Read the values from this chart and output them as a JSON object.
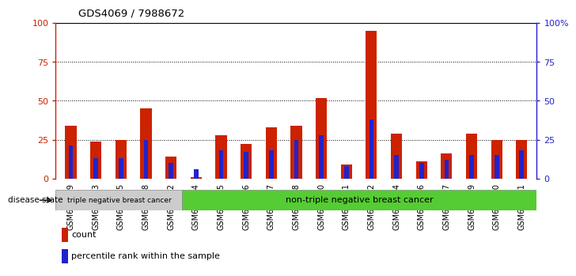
{
  "title": "GDS4069 / 7988672",
  "samples": [
    "GSM678369",
    "GSM678373",
    "GSM678375",
    "GSM678378",
    "GSM678382",
    "GSM678364",
    "GSM678365",
    "GSM678366",
    "GSM678367",
    "GSM678368",
    "GSM678370",
    "GSM678371",
    "GSM678372",
    "GSM678374",
    "GSM678376",
    "GSM678377",
    "GSM678379",
    "GSM678380",
    "GSM678381"
  ],
  "red_values": [
    34,
    24,
    25,
    45,
    14,
    1,
    28,
    22,
    33,
    34,
    52,
    9,
    95,
    29,
    11,
    16,
    29,
    25,
    25
  ],
  "blue_values": [
    21,
    13,
    13,
    25,
    10,
    6,
    18,
    17,
    18,
    25,
    28,
    8,
    38,
    15,
    10,
    12,
    15,
    15,
    18
  ],
  "red_color": "#cc2200",
  "blue_color": "#2222cc",
  "red_bar_width": 0.45,
  "blue_bar_width": 0.18,
  "ylim": [
    0,
    100
  ],
  "yticks": [
    0,
    25,
    50,
    75,
    100
  ],
  "right_yticks": [
    0,
    25,
    50,
    75,
    100
  ],
  "right_yticklabels": [
    "0",
    "25",
    "50",
    "75",
    "100%"
  ],
  "group1_label": "triple negative breast cancer",
  "group2_label": "non-triple negative breast cancer",
  "group1_count": 5,
  "group2_count": 14,
  "disease_state_label": "disease state",
  "legend_count": "count",
  "legend_percentile": "percentile rank within the sample",
  "background_color": "#ffffff",
  "plot_bg_color": "#ffffff",
  "tick_label_color_left": "#cc2200",
  "tick_label_color_right": "#2222cc",
  "grid_color": "#000000",
  "group1_bg": "#cccccc",
  "group2_bg": "#55cc33"
}
